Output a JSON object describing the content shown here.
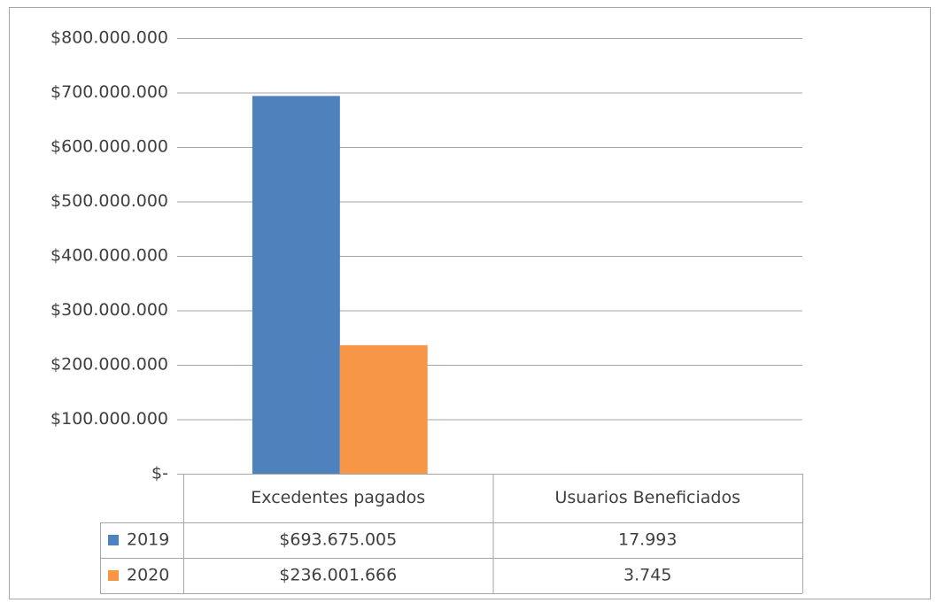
{
  "chart_data": {
    "type": "bar",
    "categories": [
      "Excedentes pagados",
      "Usuarios Beneficiados"
    ],
    "series": [
      {
        "name": "2019",
        "color": "#4f81bd",
        "values": [
          693675005,
          17993
        ],
        "value_labels": [
          "$693.675.005",
          "17.993"
        ]
      },
      {
        "name": "2020",
        "color": "#f79646",
        "values": [
          236001666,
          3745
        ],
        "value_labels": [
          "$236.001.666",
          "3.745"
        ]
      }
    ],
    "ylim": [
      0,
      800000000
    ],
    "yticks": [
      {
        "value": 0,
        "label": "$-"
      },
      {
        "value": 100000000,
        "label": "$100.000.000"
      },
      {
        "value": 200000000,
        "label": "$200.000.000"
      },
      {
        "value": 300000000,
        "label": "$300.000.000"
      },
      {
        "value": 400000000,
        "label": "$400.000.000"
      },
      {
        "value": 500000000,
        "label": "$500.000.000"
      },
      {
        "value": 600000000,
        "label": "$600.000.000"
      },
      {
        "value": 700000000,
        "label": "$700.000.000"
      },
      {
        "value": 800000000,
        "label": "$800.000.000"
      }
    ],
    "grid": true,
    "legend": "table"
  }
}
